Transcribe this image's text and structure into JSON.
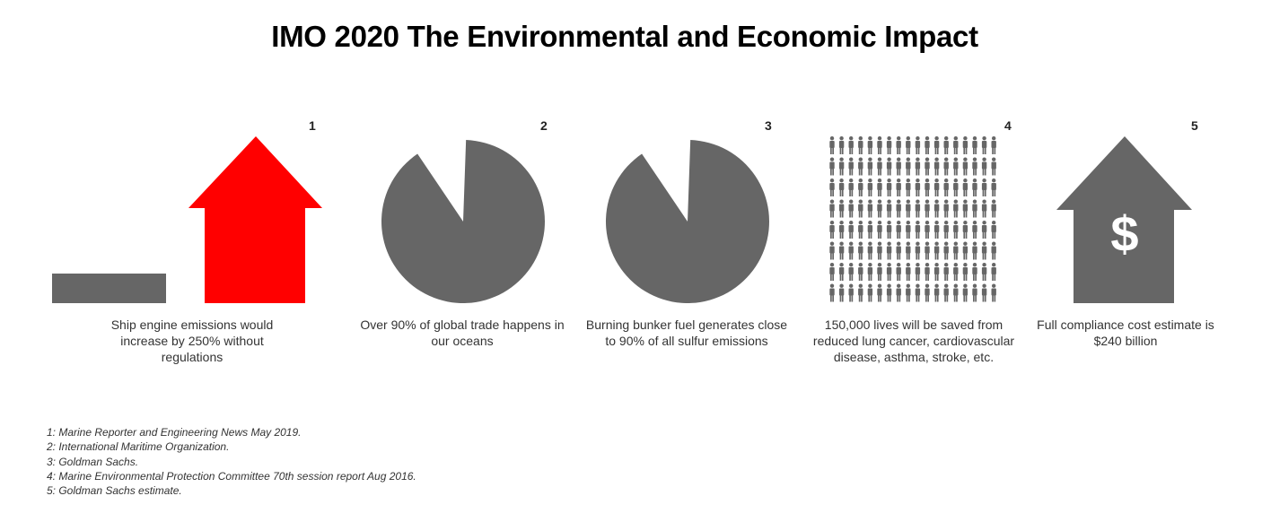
{
  "title": "IMO 2020 The Environmental and Economic Impact",
  "colors": {
    "accent_red": "#ff0000",
    "gray": "#666666"
  },
  "panels": [
    {
      "number": "1",
      "icon": "up-arrow-icon",
      "caption": "Ship engine emissions would increase by 250% without regulations"
    },
    {
      "number": "2",
      "icon": "pie-chart-icon",
      "caption": "Over 90% of global trade happens in our oceans",
      "percent": 90
    },
    {
      "number": "3",
      "icon": "pie-chart-icon",
      "caption": "Burning bunker fuel generates close to 90% of all sulfur emissions",
      "percent": 90
    },
    {
      "number": "4",
      "icon": "people-grid-icon",
      "caption": "150,000 lives will be saved from reduced lung cancer, cardiovascular disease, asthma, stroke, etc."
    },
    {
      "number": "5",
      "icon": "house-dollar-icon",
      "caption": "Full compliance cost estimate is $240 billion",
      "symbol": "$"
    }
  ],
  "footnotes": [
    "1: Marine Reporter and Engineering News May 2019.",
    "2: International Maritime Organization.",
    "3: Goldman Sachs.",
    "4: Marine Environmental Protection Committee 70th session report Aug 2016.",
    "5: Goldman Sachs estimate."
  ]
}
